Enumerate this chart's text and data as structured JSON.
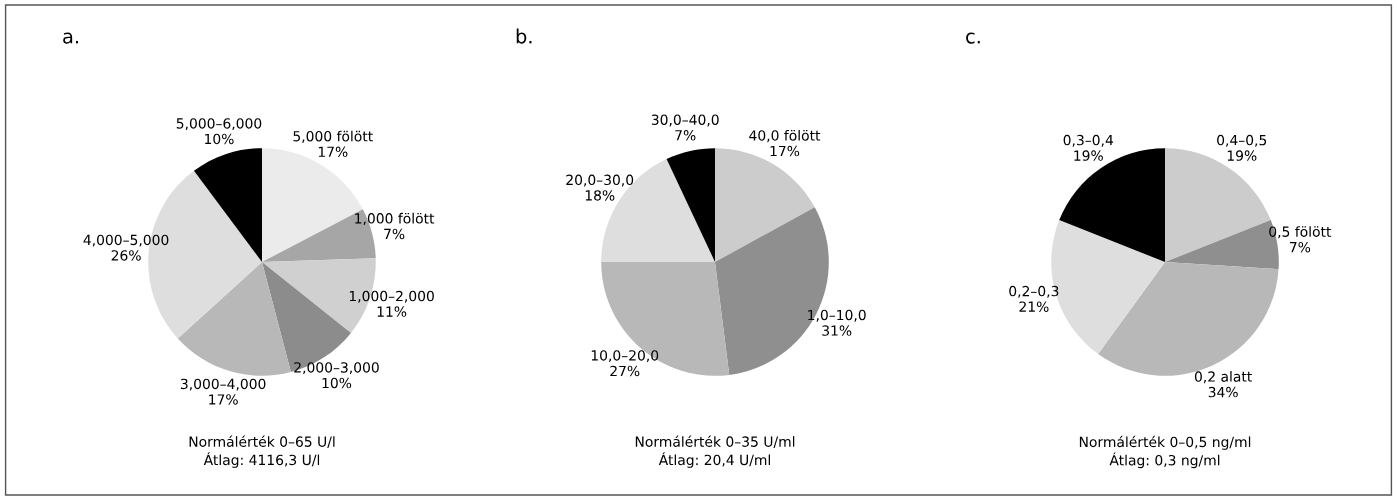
{
  "chart_data": [
    {
      "type": "pie",
      "title": "a.",
      "categories": [
        "5,000 fölött",
        "1,000 fölött",
        "1,000–2,000",
        "2,000–3,000",
        "3,000–4,000",
        "4,000–5,000",
        "5,000–6,000"
      ],
      "values": [
        17,
        7,
        11,
        10,
        17,
        26,
        10
      ],
      "value_labels": [
        "17%",
        "7%",
        "11%",
        "10%",
        "17%",
        "26%",
        "10%"
      ],
      "colors": [
        "#ebebeb",
        "#a6a6a6",
        "#d0d0d0",
        "#8c8c8c",
        "#b8b8b8",
        "#dedede",
        "#000000"
      ],
      "annotations": [
        "Normálérték 0–65 U/l\nÁtlag: 4116,3 U/l"
      ]
    },
    {
      "type": "pie",
      "title": "b.",
      "categories": [
        "40,0 fölött",
        "1,0–10,0",
        "10,0–20,0",
        "20,0–30,0",
        "30,0–40,0"
      ],
      "values": [
        17,
        31,
        27,
        18,
        7
      ],
      "value_labels": [
        "17%",
        "31%",
        "27%",
        "18%",
        "7%"
      ],
      "colors": [
        "#cccccc",
        "#8f8f8f",
        "#b8b8b8",
        "#dedede",
        "#000000"
      ],
      "annotations": [
        "Normálérték 0–35 U/ml\nÁtlag: 20,4 U/ml"
      ]
    },
    {
      "type": "pie",
      "title": "c.",
      "categories": [
        "0,4–0,5",
        "0,5 fölött",
        "0,2 alatt",
        "0,2–0,3",
        "0,3–0,4"
      ],
      "values": [
        19,
        7,
        34,
        21,
        19
      ],
      "value_labels": [
        "19%",
        "7%",
        "34%",
        "21%",
        "19%"
      ],
      "colors": [
        "#cccccc",
        "#8f8f8f",
        "#b8b8b8",
        "#dedede",
        "#000000"
      ],
      "annotations": [
        "Normálérték 0–0,5 ng/ml\nÁtlag: 0,3 ng/ml"
      ]
    }
  ]
}
